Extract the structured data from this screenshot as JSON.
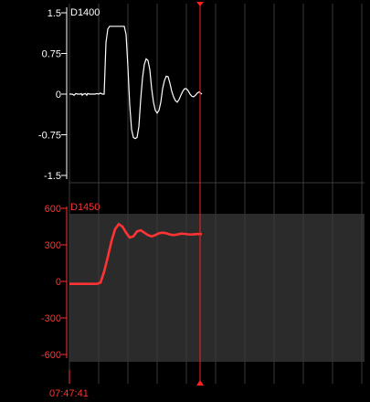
{
  "panels": [
    {
      "id": "D1400",
      "title": "D1400",
      "color": "#ffffff",
      "y_ticks": [
        "1.5",
        "0.75",
        "0",
        "-0.75",
        "-1.5"
      ],
      "ylim": [
        -1.5,
        1.5
      ]
    },
    {
      "id": "D1450",
      "title": "D1450",
      "color": "#ff3333",
      "y_ticks": [
        "600",
        "300",
        "0",
        "-300",
        "-600"
      ],
      "ylim": [
        -600,
        600
      ],
      "band_fill": "#2b2b2b"
    }
  ],
  "time_label": "07:47:41",
  "cursor_color": "#ff2020",
  "grid_color": "#3a3a3a",
  "chart_data": [
    {
      "type": "line",
      "title": "D1400",
      "ylim": [
        -1.5,
        1.5
      ],
      "series": [
        {
          "name": "D1400",
          "x": [
            0,
            3,
            5,
            7,
            9,
            10,
            12,
            13,
            14,
            15,
            16,
            17,
            18,
            19,
            20,
            22,
            24,
            26,
            28,
            30,
            32,
            34,
            36,
            38,
            40,
            42,
            44,
            46,
            48,
            50,
            52,
            54,
            56,
            58,
            60,
            62,
            64,
            66,
            68,
            70,
            72,
            74,
            76,
            78,
            80,
            82,
            84,
            86,
            88,
            90,
            92,
            94,
            96,
            98,
            100,
            102,
            104,
            106,
            108,
            110,
            112,
            114,
            116,
            118,
            120,
            122,
            124,
            126,
            128,
            130,
            132,
            134,
            136,
            138,
            140,
            142,
            145
          ],
          "y": [
            0,
            0,
            -0.02,
            0.01,
            0,
            0,
            0,
            0.01,
            -0.02,
            0,
            0,
            0.01,
            0,
            -0.02,
            0.01,
            0,
            0,
            0,
            0,
            0.01,
            0,
            0.02,
            0,
            0,
            0.95,
            1.2,
            1.25,
            1.25,
            1.25,
            1.25,
            1.25,
            1.25,
            1.25,
            1.25,
            1.25,
            1.1,
            0.5,
            -0.2,
            -0.65,
            -0.8,
            -0.82,
            -0.8,
            -0.6,
            -0.1,
            0.3,
            0.55,
            0.65,
            0.62,
            0.45,
            0.1,
            -0.15,
            -0.3,
            -0.35,
            -0.3,
            -0.15,
            0.1,
            0.25,
            0.33,
            0.32,
            0.2,
            0.05,
            -0.05,
            -0.12,
            -0.15,
            -0.1,
            -0.02,
            0.05,
            0.1,
            0.1,
            0.06,
            0,
            -0.04,
            -0.05,
            -0.02,
            0.02,
            0.04,
            0
          ]
        }
      ]
    },
    {
      "type": "line",
      "title": "D1450",
      "ylim": [
        -600,
        600
      ],
      "series": [
        {
          "name": "D1450",
          "x": [
            0,
            10,
            20,
            30,
            34,
            38,
            42,
            46,
            50,
            54,
            58,
            62,
            66,
            70,
            74,
            78,
            82,
            86,
            90,
            94,
            98,
            102,
            106,
            110,
            114,
            118,
            122,
            126,
            130,
            134,
            138,
            142,
            145
          ],
          "y": [
            -20,
            -20,
            -20,
            -20,
            -10,
            80,
            200,
            330,
            430,
            470,
            450,
            400,
            360,
            370,
            410,
            420,
            400,
            380,
            370,
            380,
            395,
            400,
            395,
            385,
            380,
            385,
            392,
            390,
            386,
            385,
            388,
            390,
            388
          ]
        }
      ]
    }
  ]
}
